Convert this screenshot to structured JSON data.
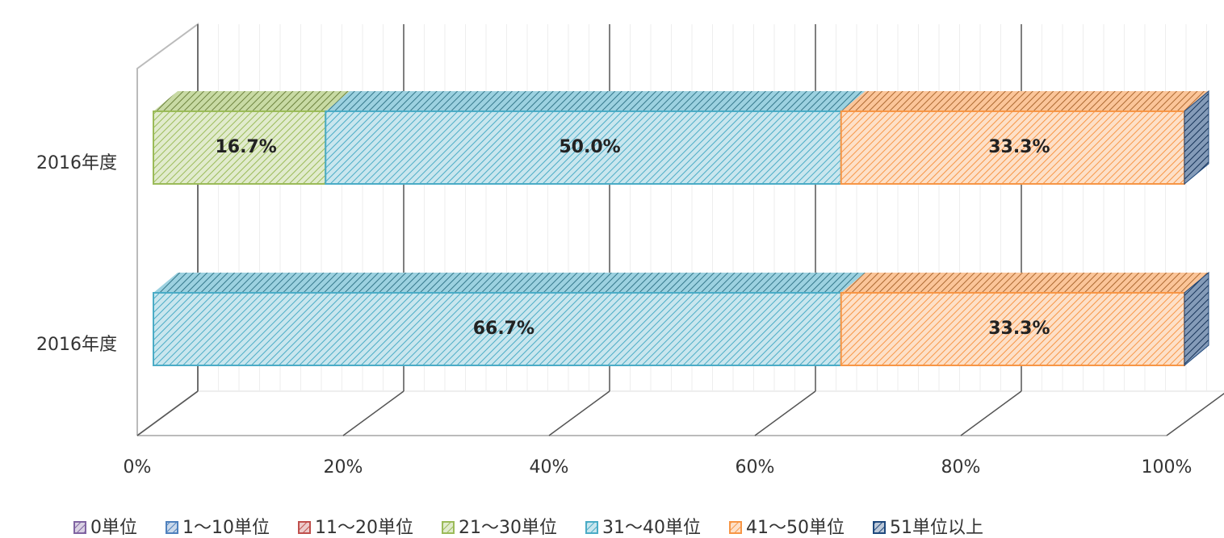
{
  "chart_data": {
    "type": "stacked-bar-3d",
    "orientation": "horizontal",
    "categories": [
      "2016年度",
      "2016年度"
    ],
    "series": [
      {
        "name": "0単位",
        "color": "#8064a2",
        "values": [
          0,
          0
        ],
        "value_labels": [
          null,
          null
        ]
      },
      {
        "name": "1～10単位",
        "color": "#4f81bd",
        "values": [
          0,
          0
        ],
        "value_labels": [
          null,
          null
        ]
      },
      {
        "name": "11～20単位",
        "color": "#c0504d",
        "values": [
          0,
          0
        ],
        "value_labels": [
          null,
          null
        ]
      },
      {
        "name": "21～30単位",
        "color": "#9bbb59",
        "values": [
          16.7,
          0
        ],
        "value_labels": [
          "16.7%",
          null
        ]
      },
      {
        "name": "31～40単位",
        "color": "#4bacc6",
        "values": [
          50.0,
          66.7
        ],
        "value_labels": [
          "50.0%",
          "66.7%"
        ]
      },
      {
        "name": "41～50単位",
        "color": "#f79646",
        "values": [
          33.3,
          33.3
        ],
        "value_labels": [
          "33.3%",
          "33.3%"
        ]
      },
      {
        "name": "51単位以上",
        "color": "#1f497d",
        "values": [
          0,
          0
        ],
        "value_labels": [
          null,
          null
        ]
      }
    ],
    "xlim": [
      0,
      100
    ],
    "xticks": [
      {
        "value": 0,
        "label": "0%"
      },
      {
        "value": 20,
        "label": "20%"
      },
      {
        "value": 40,
        "label": "40%"
      },
      {
        "value": 60,
        "label": "60%"
      },
      {
        "value": 80,
        "label": "80%"
      },
      {
        "value": 100,
        "label": "100%"
      }
    ],
    "grid": true,
    "legend": "bottom"
  }
}
